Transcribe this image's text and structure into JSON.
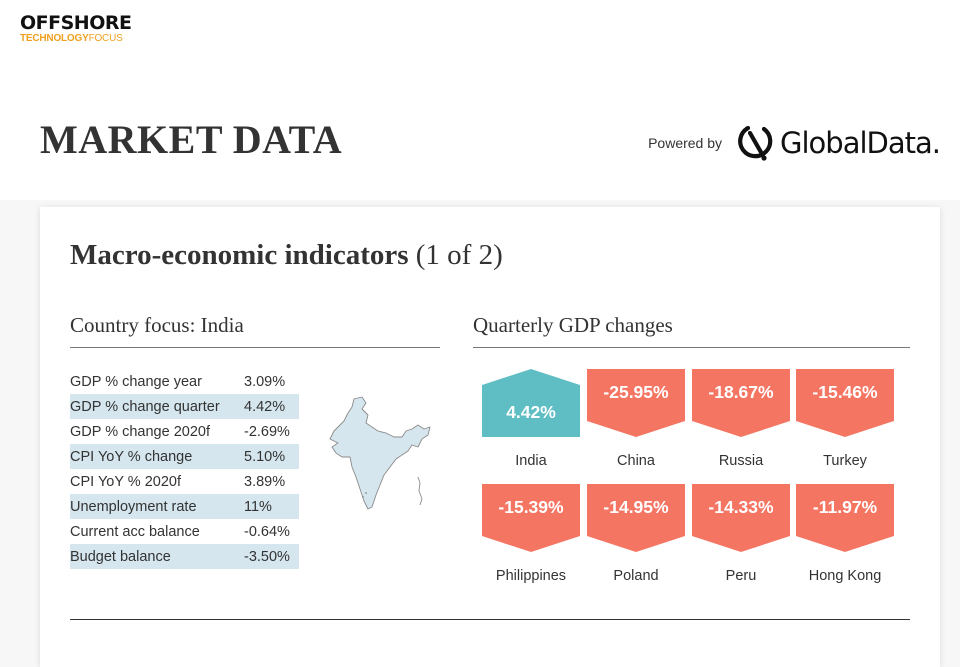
{
  "site_logo": {
    "main": "OFFSHORE",
    "sub_primary": "TECHNOLOGY",
    "sub_secondary": "FOCUS"
  },
  "header": {
    "title": "MARKET DATA",
    "powered_by": "Powered by",
    "provider": "GlobalData."
  },
  "card": {
    "title_strong": "Macro-economic indicators",
    "title_rest": " (1 of 2)",
    "country_focus": "Country focus: India",
    "gdp_title": "Quarterly GDP changes"
  },
  "indicators": [
    {
      "label": "GDP % change year",
      "value": "3.09%"
    },
    {
      "label": "GDP % change quarter",
      "value": "4.42%"
    },
    {
      "label": "GDP % change 2020f",
      "value": "-2.69%"
    },
    {
      "label": "CPI YoY % change",
      "value": "5.10%"
    },
    {
      "label": "CPI YoY % 2020f",
      "value": "3.89%"
    },
    {
      "label": "Unemployment rate",
      "value": "11%"
    },
    {
      "label": "Current acc balance",
      "value": "-0.64%"
    },
    {
      "label": "Budget balance",
      "value": "-3.50%"
    }
  ],
  "gdp_tiles": [
    {
      "country": "India",
      "value": "4.42%",
      "direction": "up"
    },
    {
      "country": "China",
      "value": "-25.95%",
      "direction": "down"
    },
    {
      "country": "Russia",
      "value": "-18.67%",
      "direction": "down"
    },
    {
      "country": "Turkey",
      "value": "-15.46%",
      "direction": "down"
    },
    {
      "country": "Philippines",
      "value": "-15.39%",
      "direction": "down"
    },
    {
      "country": "Poland",
      "value": "-14.95%",
      "direction": "down"
    },
    {
      "country": "Peru",
      "value": "-14.33%",
      "direction": "down"
    },
    {
      "country": "Hong Kong",
      "value": "-11.97%",
      "direction": "down"
    }
  ],
  "colors": {
    "up": "#5fbec4",
    "down": "#f57563",
    "row_shade": "#d5e6ee",
    "map_fill": "#d5e6ee",
    "logo_accent": "#f0a020"
  }
}
